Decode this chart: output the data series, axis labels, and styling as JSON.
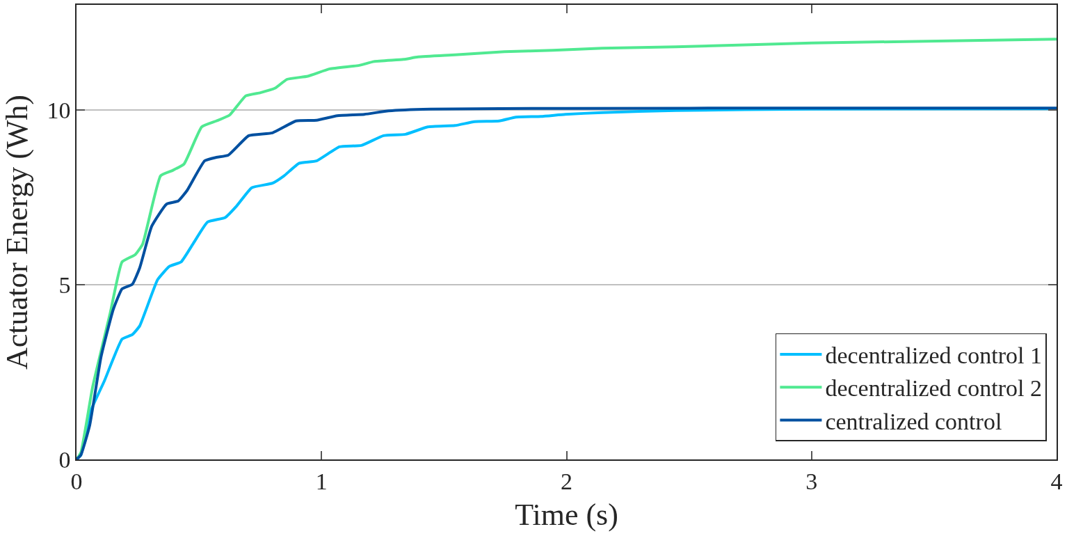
{
  "chart_data": {
    "type": "line",
    "xlabel": "Time (s)",
    "ylabel": "Actuator Energy (Wh)",
    "xlim": [
      0,
      4
    ],
    "xticks": [
      0,
      1,
      2,
      3,
      4
    ],
    "ylim": [
      0,
      13
    ],
    "yticks": [
      0,
      5,
      10
    ],
    "grid": "y",
    "legend": "bottom right",
    "line_style": "solid",
    "marker": "none",
    "series": [
      {
        "name": "decentralized control 1",
        "color": "#00bfff",
        "x": [
          0,
          0.018,
          0.054,
          0.114,
          0.186,
          0.228,
          0.258,
          0.331,
          0.379,
          0.427,
          0.475,
          0.535,
          0.607,
          0.655,
          0.715,
          0.8,
          0.847,
          0.908,
          0.98,
          1.073,
          1.163,
          1.253,
          1.343,
          1.434,
          1.545,
          1.625,
          1.725,
          1.794,
          1.896,
          1.995,
          2.146,
          2.446,
          3.0,
          4.0
        ],
        "values": [
          0,
          0.13,
          1.32,
          2.25,
          3.44,
          3.57,
          3.82,
          5.14,
          5.52,
          5.65,
          6.16,
          6.79,
          6.92,
          7.26,
          7.77,
          7.9,
          8.11,
          8.47,
          8.54,
          8.94,
          8.98,
          9.26,
          9.3,
          9.51,
          9.55,
          9.66,
          9.68,
          9.79,
          9.81,
          9.87,
          9.92,
          9.98,
          10.02,
          10.03
        ]
      },
      {
        "name": "decentralized control 2",
        "color": "#50e991",
        "x": [
          0,
          0.018,
          0.066,
          0.138,
          0.186,
          0.24,
          0.27,
          0.343,
          0.391,
          0.439,
          0.511,
          0.571,
          0.625,
          0.691,
          0.751,
          0.811,
          0.859,
          0.944,
          1.034,
          1.154,
          1.214,
          1.334,
          1.394,
          1.545,
          1.746,
          1.944,
          2.146,
          2.446,
          3.0,
          4.0
        ],
        "values": [
          0,
          0.2,
          2.08,
          4.2,
          5.65,
          5.86,
          6.16,
          8.11,
          8.26,
          8.45,
          9.51,
          9.68,
          9.85,
          10.4,
          10.49,
          10.62,
          10.87,
          10.96,
          11.17,
          11.27,
          11.38,
          11.44,
          11.51,
          11.57,
          11.66,
          11.7,
          11.76,
          11.8,
          11.91,
          12.02
        ]
      },
      {
        "name": "centralized control",
        "color": "#0050a0",
        "x": [
          0,
          0.018,
          0.054,
          0.1,
          0.15,
          0.186,
          0.228,
          0.258,
          0.307,
          0.367,
          0.415,
          0.451,
          0.523,
          0.571,
          0.619,
          0.703,
          0.8,
          0.896,
          0.98,
          1.064,
          1.175,
          1.274,
          1.445,
          2.0,
          3.0,
          4.0
        ],
        "values": [
          0,
          0.13,
          0.98,
          2.93,
          4.29,
          4.88,
          5.01,
          5.48,
          6.67,
          7.3,
          7.39,
          7.69,
          8.54,
          8.64,
          8.7,
          9.26,
          9.34,
          9.68,
          9.7,
          9.83,
          9.87,
          9.97,
          10.02,
          10.04,
          10.05,
          10.05
        ]
      }
    ]
  }
}
